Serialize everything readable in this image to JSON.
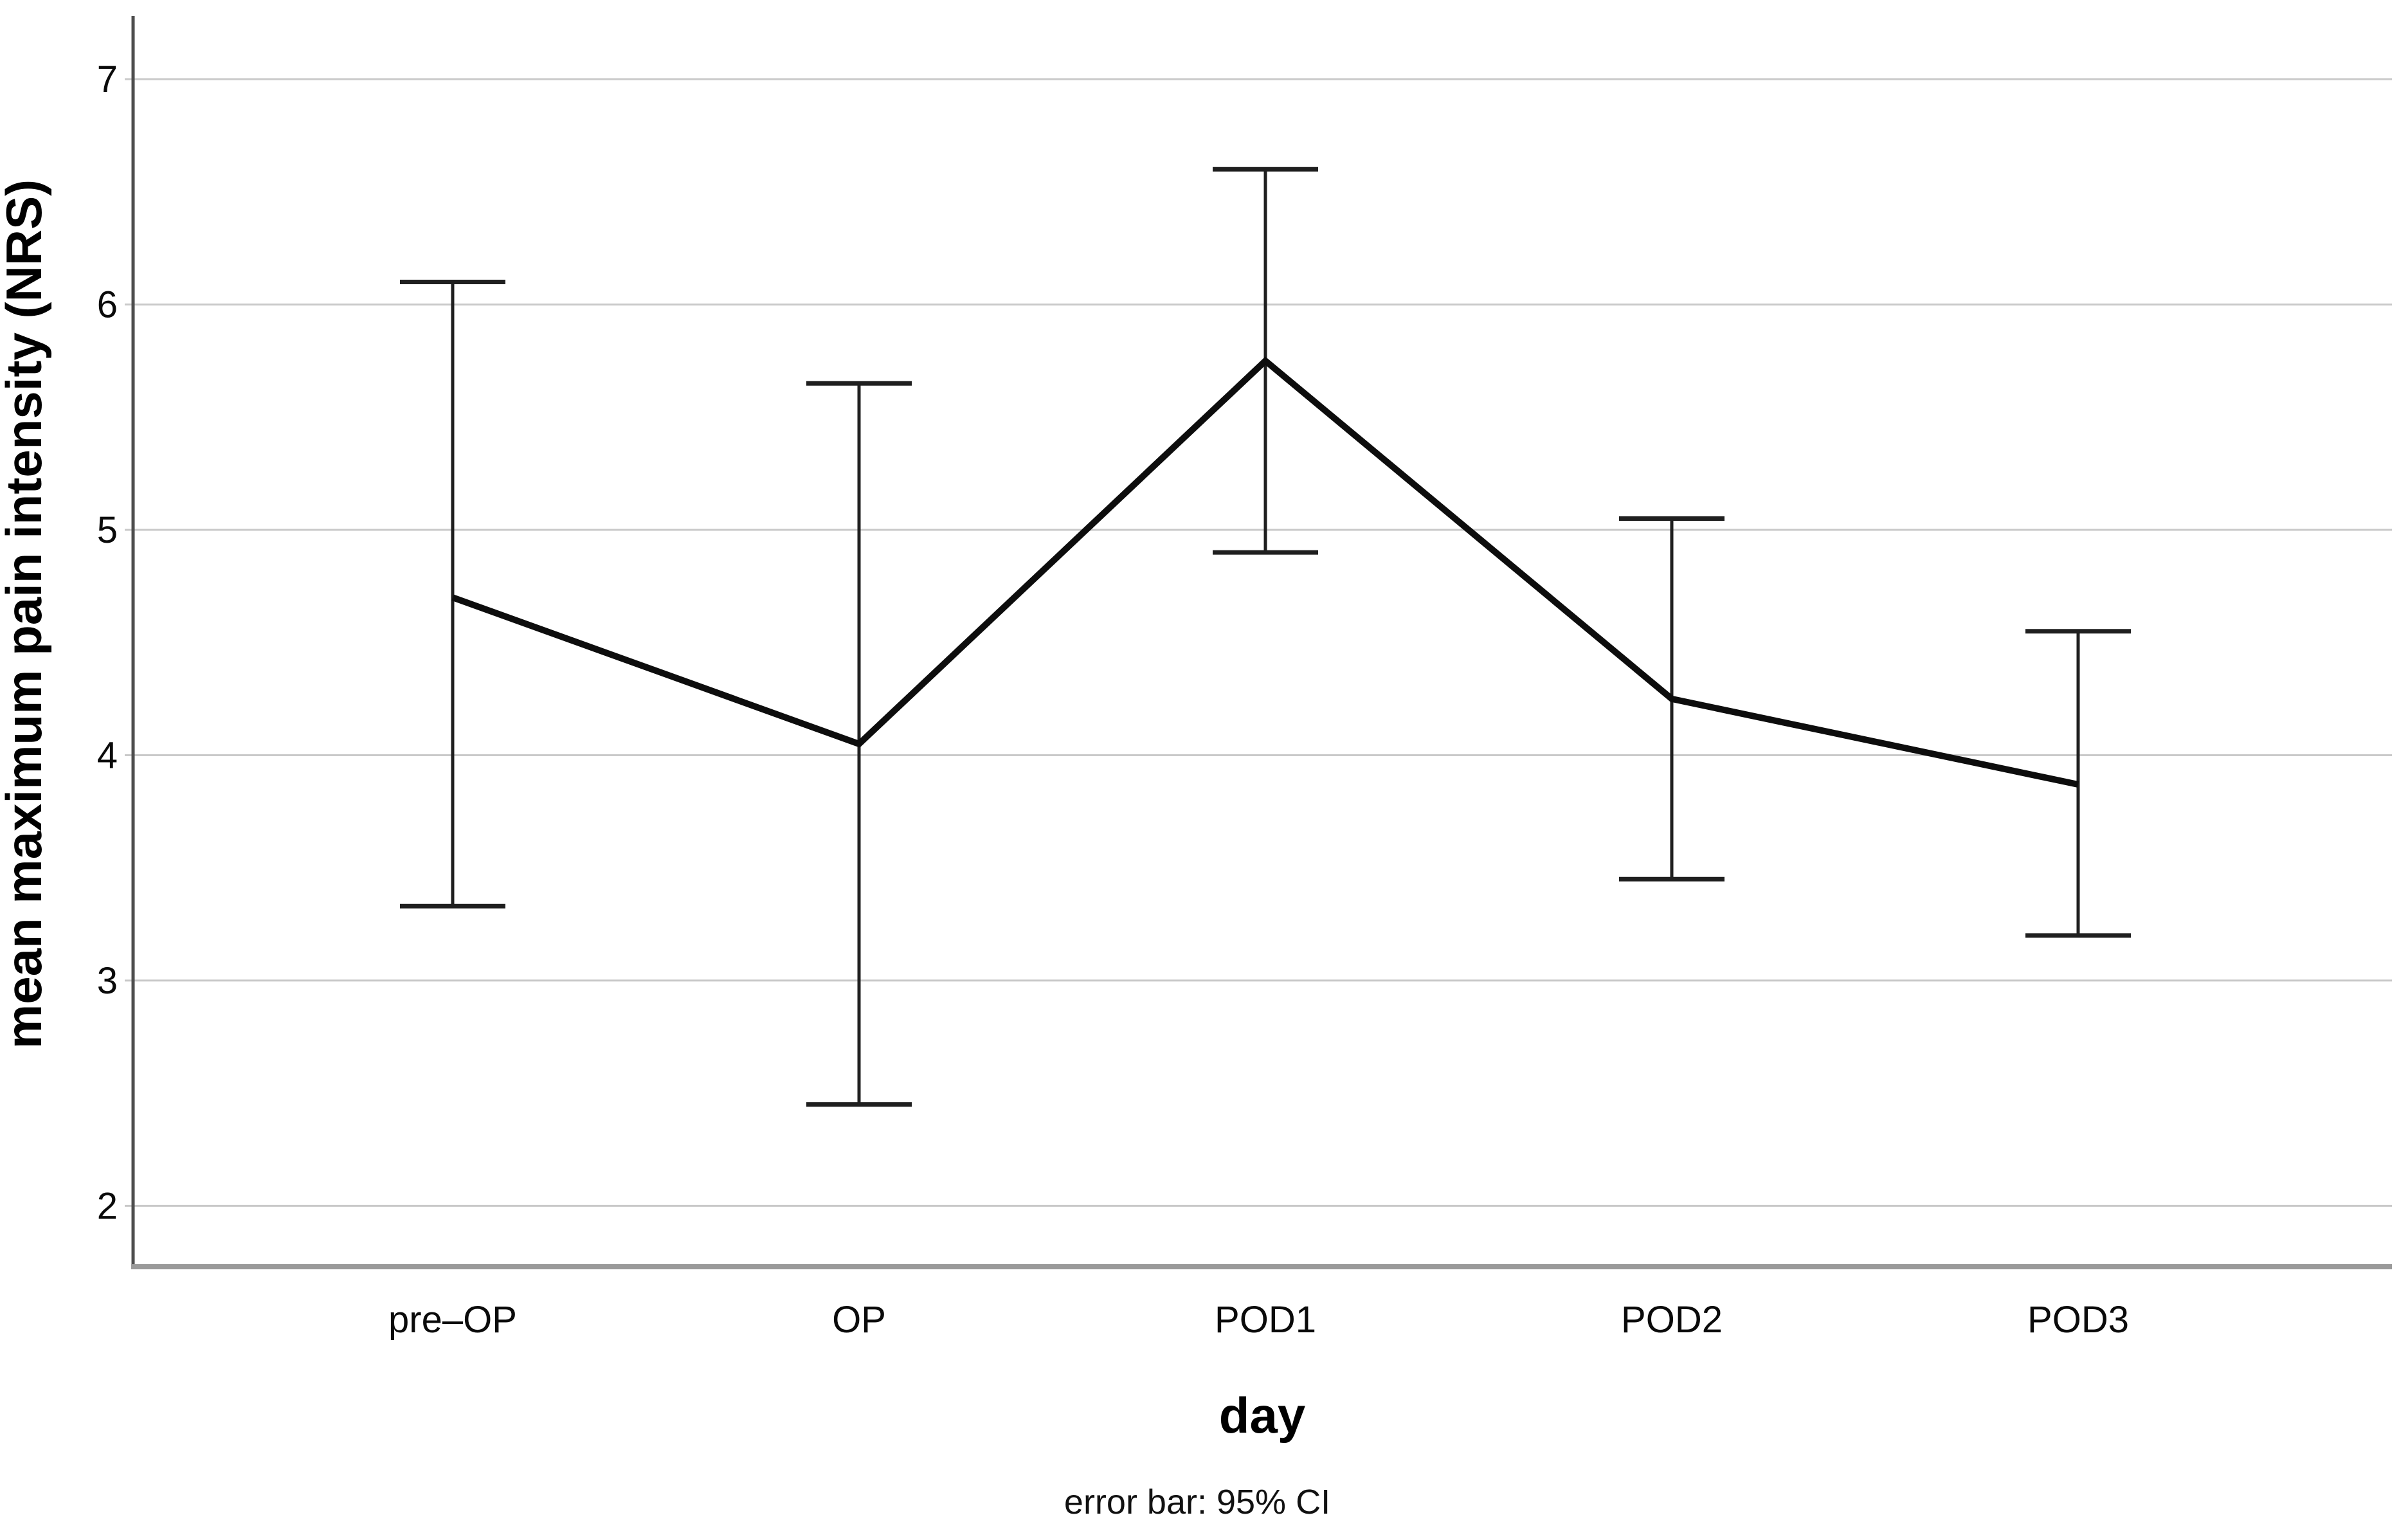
{
  "chart_data": {
    "type": "line",
    "title": "",
    "xlabel": "day",
    "ylabel": "mean maximum pain intensity (NRS)",
    "footnote": "error bar: 95% CI",
    "categories": [
      "pre–OP",
      "OP",
      "POD1",
      "POD2",
      "POD3"
    ],
    "series": [
      {
        "name": "mean maximum pain intensity (NRS)",
        "values": [
          4.7,
          4.05,
          5.75,
          4.25,
          3.87
        ],
        "ci_upper": [
          6.1,
          5.65,
          6.6,
          5.05,
          4.55
        ],
        "ci_lower": [
          3.33,
          2.45,
          4.9,
          3.45,
          3.2
        ]
      }
    ],
    "error_bar_note": "95% CI",
    "yticks": [
      2,
      3,
      4,
      5,
      6,
      7
    ],
    "ylim": [
      1.73,
      7.28
    ],
    "grid": "horizontal",
    "legend": "none",
    "colors": {
      "line": "#0d0d0d",
      "error_bar": "#1f1f1f",
      "grid": "#c9c9c9",
      "x_axis": "#9a9a9a",
      "y_axis": "#4d4d4d",
      "text": "#000000"
    }
  }
}
